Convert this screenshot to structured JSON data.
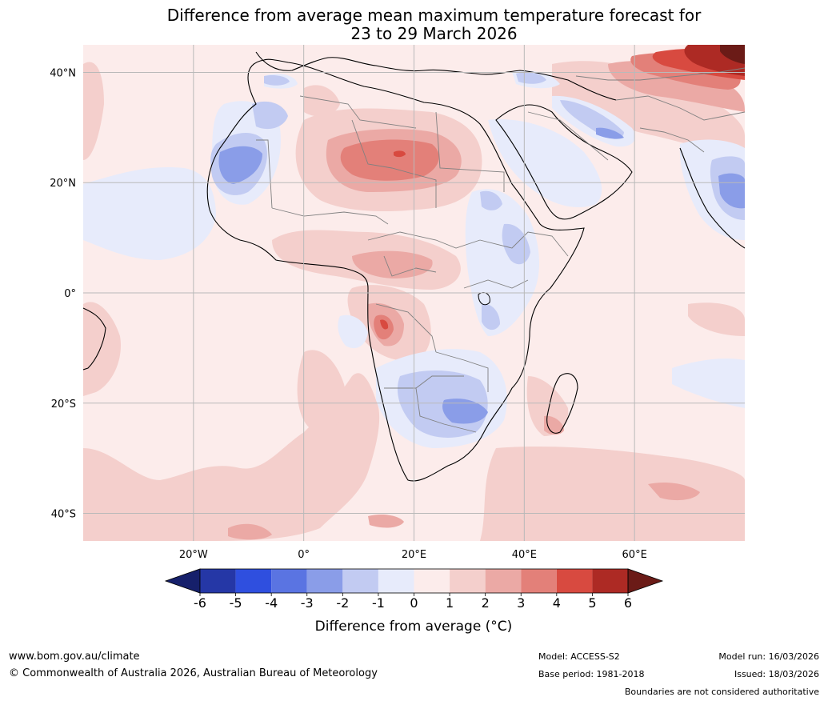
{
  "title": {
    "line1": "Difference from average mean maximum temperature forecast for",
    "line2": "23 to 29 March 2026"
  },
  "map": {
    "lat_labels": [
      "40°N",
      "20°N",
      "0°",
      "20°S",
      "40°S"
    ],
    "lon_labels": [
      "20°W",
      "0°",
      "20°E",
      "40°E",
      "60°E"
    ],
    "lat_values": [
      40,
      20,
      0,
      -20,
      -40
    ],
    "lon_values": [
      -20,
      0,
      20,
      40,
      60
    ],
    "extent": {
      "lon_min": -40,
      "lon_max": 80,
      "lat_min": -45,
      "lat_max": 45
    }
  },
  "colorbar": {
    "title": "Difference from average (°C)",
    "ticks": [
      "-6",
      "-5",
      "-4",
      "-3",
      "-2",
      "-1",
      "0",
      "1",
      "2",
      "3",
      "4",
      "5",
      "6"
    ],
    "colors": [
      "#16206b",
      "#2537a6",
      "#2f4fdf",
      "#5a74e2",
      "#8a9de8",
      "#c2cbf2",
      "#e7ebfb",
      "#fceceb",
      "#f4cfcc",
      "#eba9a5",
      "#e38079",
      "#d84a40",
      "#ad2a24",
      "#6b1b17"
    ]
  },
  "colors": {
    "background_field": "#fceceb",
    "grid": "#b9b9b9",
    "coast": "#000000",
    "borders": "#808080"
  },
  "footer": {
    "website": "www.bom.gov.au/climate",
    "copyright": "© Commonwealth of Australia 2026, Australian Bureau of Meteorology",
    "model": "Model: ACCESS-S2",
    "base_period": "Base period: 1981-2018",
    "model_run": "Model run: 16/03/2026",
    "issued": "Issued: 18/03/2026",
    "disclaimer": "Boundaries are not considered authoritative"
  }
}
